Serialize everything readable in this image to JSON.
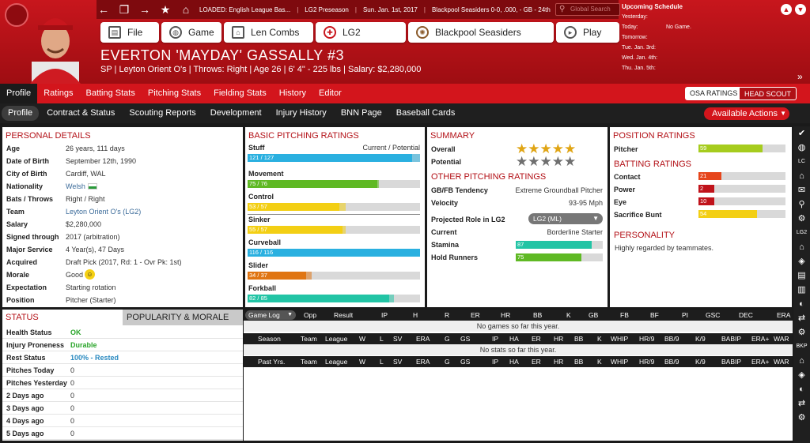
{
  "header": {
    "loaded": "LOADED: English League Bas...",
    "league": "LG2 Preseason",
    "date": "Sun. Jan. 1st, 2017",
    "team_record": "Blackpool Seasiders 0-0, .000, - GB - 24th",
    "search_placeholder": "Global Search"
  },
  "nav_buttons": [
    "File",
    "Game",
    "Len Combs",
    "LG2",
    "Blackpool Seasiders",
    "Play"
  ],
  "player": {
    "name": "EVERTON 'MAYDAY' GASSALLY  #3",
    "info": "SP | Leyton Orient O's  |  Throws: Right  |  Age 26  |  6' 4\" - 225 lbs  |  Salary: $2,280,000"
  },
  "schedule": {
    "title": "Upcoming Schedule",
    "rows": [
      [
        "Yesterday:",
        ""
      ],
      [
        "Today:",
        "No Game."
      ],
      [
        "Tomorrow:",
        ""
      ],
      [
        "Tue. Jan. 3rd:",
        ""
      ],
      [
        "Wed. Jan. 4th:",
        ""
      ],
      [
        "Thu. Jan. 5th:",
        ""
      ]
    ]
  },
  "tabs_main": [
    "Profile",
    "Ratings",
    "Batting Stats",
    "Pitching Stats",
    "Fielding Stats",
    "History",
    "Editor"
  ],
  "ratings_toggle": [
    "OSA RATINGS",
    "HEAD SCOUT"
  ],
  "tabs_sub": [
    "Profile",
    "Contract & Status",
    "Scouting Reports",
    "Development",
    "Injury History",
    "BNN Page",
    "Baseball Cards"
  ],
  "available_actions": "Available Actions",
  "personal": {
    "title": "PERSONAL DETAILS",
    "rows": [
      [
        "Age",
        "26 years, 111 days"
      ],
      [
        "Date of Birth",
        "September 12th, 1990"
      ],
      [
        "City of Birth",
        "Cardiff, WAL"
      ],
      [
        "Nationality",
        "Welsh"
      ],
      [
        "Bats / Throws",
        "Right / Right"
      ],
      [
        "Team",
        "Leyton Orient O's (LG2)"
      ],
      [
        "Salary",
        "$2,280,000"
      ],
      [
        "Signed through",
        "2017 (arbitration)"
      ],
      [
        "Major Service",
        "4 Year(s), 47 Days"
      ],
      [
        "Acquired",
        "Draft Pick (2017, Rd: 1 - Ovr Pk: 1st)"
      ],
      [
        "Morale",
        "Good"
      ],
      [
        "Expectation",
        "Starting rotation"
      ],
      [
        "Position",
        "Pitcher (Starter)"
      ]
    ]
  },
  "basic_pitching": {
    "title": "BASIC PITCHING RATINGS",
    "cur_pot": "Current / Potential",
    "items": [
      {
        "name": "Stuff",
        "label": "121 / 127",
        "cur": 121,
        "pot": 127,
        "max": 127,
        "color": "#2ab0e0"
      },
      {
        "name": "Movement",
        "label": "75 / 76",
        "cur": 75,
        "pot": 76,
        "max": 100,
        "color": "#5fb924"
      },
      {
        "name": "Control",
        "label": "53 / 57",
        "cur": 53,
        "pot": 57,
        "max": 100,
        "color": "#f3cf14"
      },
      {
        "name": "Sinker",
        "label": "55 / 57",
        "cur": 55,
        "pot": 57,
        "max": 100,
        "color": "#f3cf14"
      },
      {
        "name": "Curveball",
        "label": "116 / 116",
        "cur": 116,
        "pot": 116,
        "max": 116,
        "color": "#2ab0e0"
      },
      {
        "name": "Slider",
        "label": "34 / 37",
        "cur": 34,
        "pot": 37,
        "max": 100,
        "color": "#e07512"
      },
      {
        "name": "Forkball",
        "label": "82 / 85",
        "cur": 82,
        "pot": 85,
        "max": 100,
        "color": "#22c4a5"
      }
    ]
  },
  "summary": {
    "title": "SUMMARY",
    "overall_label": "Overall",
    "potential_label": "Potential",
    "overall_stars": 5,
    "potential_stars": 0
  },
  "other_pitching": {
    "title": "OTHER PITCHING RATINGS",
    "gbfb_label": "GB/FB Tendency",
    "gbfb": "Extreme Groundball Pitcher",
    "velo_label": "Velocity",
    "velo": "93-95 Mph",
    "role_label": "Projected Role in LG2",
    "role_select": "LG2 (ML)",
    "current_label": "Current",
    "current": "Borderline Starter",
    "stamina_label": "Stamina",
    "stamina": 87,
    "hold_label": "Hold Runners",
    "hold": 75
  },
  "position_ratings": {
    "title": "POSITION RATINGS",
    "pitcher_label": "Pitcher",
    "pitcher": 59
  },
  "batting_ratings": {
    "title": "BATTING RATINGS",
    "items": [
      {
        "name": "Contact",
        "value": 21,
        "color": "#e6451b"
      },
      {
        "name": "Power",
        "value": 2,
        "color": "#c0131b"
      },
      {
        "name": "Eye",
        "value": 10,
        "color": "#c0131b"
      },
      {
        "name": "Sacrifice Bunt",
        "value": 54,
        "color": "#f3cf14"
      }
    ]
  },
  "personality": {
    "title": "PERSONALITY",
    "text": "Highly regarded by teammates."
  },
  "status": {
    "title": "STATUS",
    "tab2": "POPULARITY & MORALE",
    "rows": [
      [
        "Health Status",
        "OK"
      ],
      [
        "Injury Proneness",
        "Durable"
      ],
      [
        "Rest Status",
        "100% - Rested"
      ],
      [
        "Pitches Today",
        "0"
      ],
      [
        "Pitches Yesterday",
        "0"
      ],
      [
        "2 Days ago",
        "0"
      ],
      [
        "3 Days ago",
        "0"
      ],
      [
        "4 Days ago",
        "0"
      ],
      [
        "5 Days ago",
        "0"
      ]
    ]
  },
  "gamelog": {
    "select": "Game Log",
    "cols": [
      "Opp",
      "Result",
      "IP",
      "H",
      "R",
      "ER",
      "HR",
      "BB",
      "K",
      "GB",
      "FB",
      "BF",
      "PI",
      "GSC",
      "DEC",
      "ERA"
    ],
    "empty": "No games so far this year."
  },
  "season": {
    "cols": [
      "Season",
      "Team",
      "League",
      "W",
      "L",
      "SV",
      "ERA",
      "G",
      "GS",
      "IP",
      "HA",
      "ER",
      "HR",
      "BB",
      "K",
      "WHIP",
      "HR/9",
      "BB/9",
      "K/9",
      "BABIP",
      "ERA+",
      "WAR"
    ],
    "empty": "No stats so far this year."
  },
  "pastyrs": {
    "cols": [
      "Past Yrs.",
      "Team",
      "League",
      "W",
      "L",
      "SV",
      "ERA",
      "G",
      "GS",
      "IP",
      "HA",
      "ER",
      "HR",
      "BB",
      "K",
      "WHIP",
      "HR/9",
      "BB/9",
      "K/9",
      "BABIP",
      "ERA+",
      "WAR"
    ]
  },
  "sidebar_labels": [
    "LC",
    "LG2",
    "BKP"
  ]
}
